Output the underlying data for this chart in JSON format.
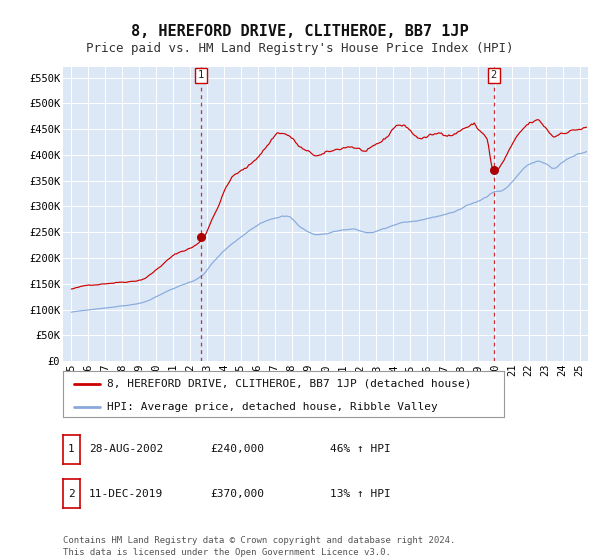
{
  "title": "8, HEREFORD DRIVE, CLITHEROE, BB7 1JP",
  "subtitle": "Price paid vs. HM Land Registry's House Price Index (HPI)",
  "bg_color": "#ffffff",
  "plot_bg_color": "#dce8f5",
  "grid_color": "#ffffff",
  "ylabel_ticks": [
    "£0",
    "£50K",
    "£100K",
    "£150K",
    "£200K",
    "£250K",
    "£300K",
    "£350K",
    "£400K",
    "£450K",
    "£500K",
    "£550K"
  ],
  "ytick_vals": [
    0,
    50000,
    100000,
    150000,
    200000,
    250000,
    300000,
    350000,
    400000,
    450000,
    500000,
    550000
  ],
  "ylim": [
    0,
    570000
  ],
  "xlim_start": 1994.5,
  "xlim_end": 2025.5,
  "xtick_years": [
    1995,
    1996,
    1997,
    1998,
    1999,
    2000,
    2001,
    2002,
    2003,
    2004,
    2005,
    2006,
    2007,
    2008,
    2009,
    2010,
    2011,
    2012,
    2013,
    2014,
    2015,
    2016,
    2017,
    2018,
    2019,
    2020,
    2021,
    2022,
    2023,
    2024,
    2025
  ],
  "red_line_color": "#cc0000",
  "blue_line_color": "#88aadd",
  "sale1_date": 2002.65,
  "sale1_price": 240000,
  "sale1_label": "1",
  "sale2_date": 2019.94,
  "sale2_price": 370000,
  "sale2_label": "2",
  "marker_color": "#aa0000",
  "vline_color": "#cc0000",
  "legend_label_red": "8, HEREFORD DRIVE, CLITHEROE, BB7 1JP (detached house)",
  "legend_label_blue": "HPI: Average price, detached house, Ribble Valley",
  "table_row1": [
    "1",
    "28-AUG-2002",
    "£240,000",
    "46% ↑ HPI"
  ],
  "table_row2": [
    "2",
    "11-DEC-2019",
    "£370,000",
    "13% ↑ HPI"
  ],
  "footnote": "Contains HM Land Registry data © Crown copyright and database right 2024.\nThis data is licensed under the Open Government Licence v3.0.",
  "title_fontsize": 11,
  "subtitle_fontsize": 9,
  "tick_fontsize": 7.5,
  "legend_fontsize": 8,
  "table_fontsize": 8,
  "footnote_fontsize": 6.5
}
